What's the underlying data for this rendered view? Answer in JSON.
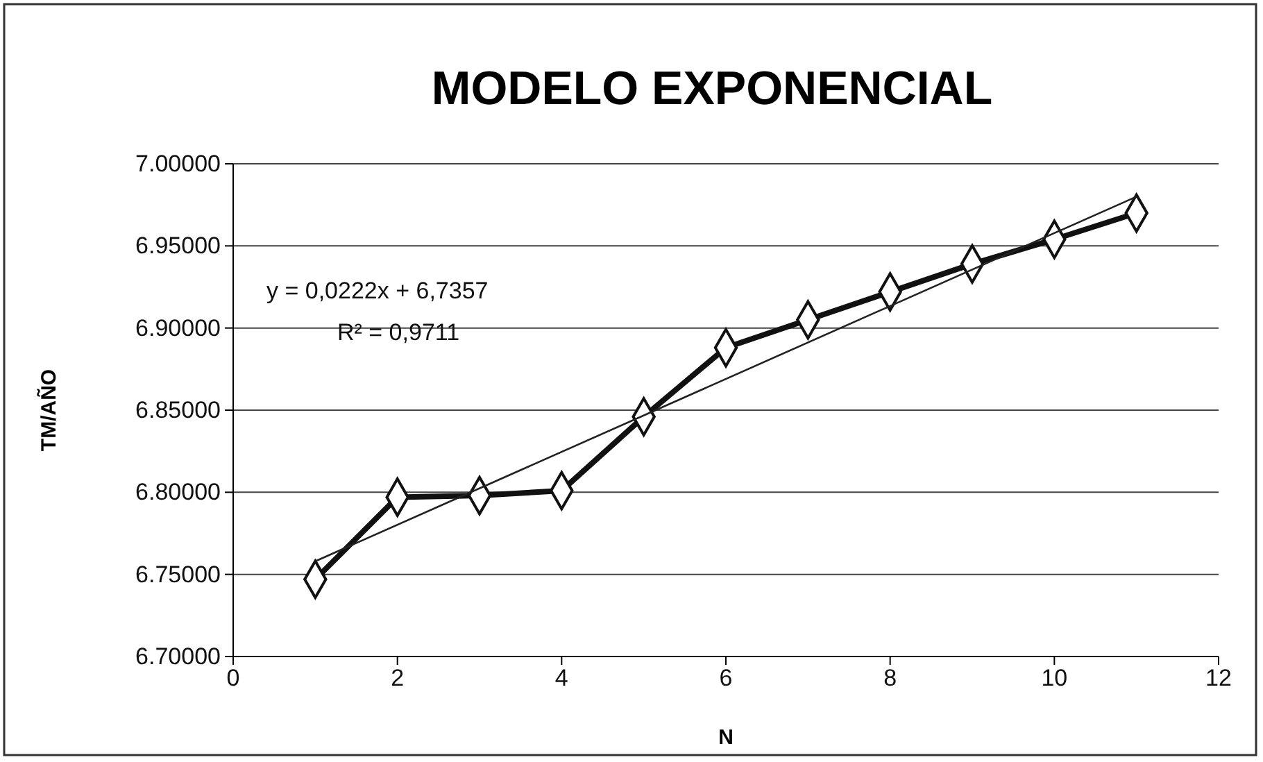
{
  "chart_data": {
    "type": "line",
    "title": "MODELO EXPONENCIAL",
    "xlabel": "N",
    "ylabel": "TM/AÑO",
    "xlim": [
      0,
      12
    ],
    "xticks": [
      0,
      2,
      4,
      6,
      8,
      10,
      12
    ],
    "ylim": [
      6.7,
      7.0
    ],
    "yticks": [
      {
        "value": 6.7,
        "label": "6.70000"
      },
      {
        "value": 6.75,
        "label": "6.75000"
      },
      {
        "value": 6.8,
        "label": "6.80000"
      },
      {
        "value": 6.85,
        "label": "6.85000"
      },
      {
        "value": 6.9,
        "label": "6.90000"
      },
      {
        "value": 6.95,
        "label": "6.95000"
      },
      {
        "value": 7.0,
        "label": "7.00000"
      }
    ],
    "grid": "y",
    "annotations": [
      "y = 0,0222x + 6,7357",
      "R² = 0,9711"
    ],
    "series": [
      {
        "color": "#111111",
        "marker": "diamond",
        "x": [
          1,
          2,
          3,
          4,
          5,
          6,
          7,
          8,
          9,
          10,
          11
        ],
        "values": [
          6.747,
          6.797,
          6.798,
          6.801,
          6.846,
          6.888,
          6.905,
          6.922,
          6.939,
          6.954,
          6.97
        ]
      },
      {
        "type": "line",
        "color": "#222222",
        "marker": "none",
        "x": [
          1,
          11
        ],
        "values": [
          6.758,
          6.98
        ]
      }
    ]
  }
}
